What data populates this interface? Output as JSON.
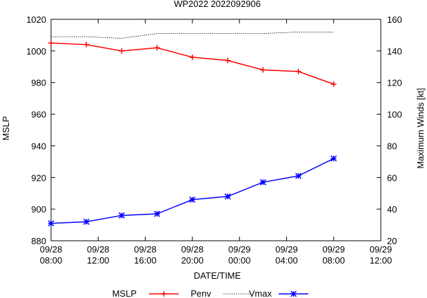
{
  "chart_data": {
    "type": "line",
    "title": "WP2022 2022092906",
    "xlabel": "DATE/TIME",
    "ylabel": "MSLP",
    "y2label": "Maximum Winds [kt]",
    "x_ticks": [
      {
        "line1": "09/28",
        "line2": "08:00",
        "hours": 0
      },
      {
        "line1": "09/28",
        "line2": "12:00",
        "hours": 4
      },
      {
        "line1": "09/28",
        "line2": "16:00",
        "hours": 8
      },
      {
        "line1": "09/28",
        "line2": "20:00",
        "hours": 12
      },
      {
        "line1": "09/29",
        "line2": "00:00",
        "hours": 16
      },
      {
        "line1": "09/29",
        "line2": "04:00",
        "hours": 20
      },
      {
        "line1": "09/29",
        "line2": "08:00",
        "hours": 24
      },
      {
        "line1": "09/29",
        "line2": "12:00",
        "hours": 28
      }
    ],
    "xlim": [
      0,
      28
    ],
    "ylim": [
      880,
      1020
    ],
    "y_ticks": [
      880,
      900,
      920,
      940,
      960,
      980,
      1000,
      1020
    ],
    "y2lim": [
      20,
      160
    ],
    "y2_ticks": [
      20,
      40,
      60,
      80,
      100,
      120,
      140,
      160
    ],
    "grid": false,
    "legend_position": "bottom",
    "series": [
      {
        "name": "MSLP",
        "axis": "left",
        "color": "#ff0000",
        "style": "solid",
        "marker": "plus",
        "x": [
          0,
          3,
          6,
          9,
          12,
          15,
          18,
          21,
          24
        ],
        "values": [
          1005,
          1004,
          1000,
          1002,
          996,
          994,
          988,
          987,
          979
        ]
      },
      {
        "name": "Penv",
        "axis": "left",
        "color": "#000000",
        "style": "dotted",
        "marker": "none",
        "x": [
          0,
          3,
          6,
          9,
          12,
          15,
          18,
          21,
          24
        ],
        "values": [
          1009,
          1009,
          1008,
          1011,
          1011,
          1011,
          1011,
          1012,
          1012
        ]
      },
      {
        "name": "Vmax",
        "axis": "right",
        "color": "#0000ff",
        "style": "solid",
        "marker": "star",
        "x": [
          0,
          3,
          6,
          9,
          12,
          15,
          18,
          21,
          24
        ],
        "values": [
          31,
          32,
          36,
          37,
          46,
          48,
          57,
          61,
          72
        ]
      }
    ]
  }
}
